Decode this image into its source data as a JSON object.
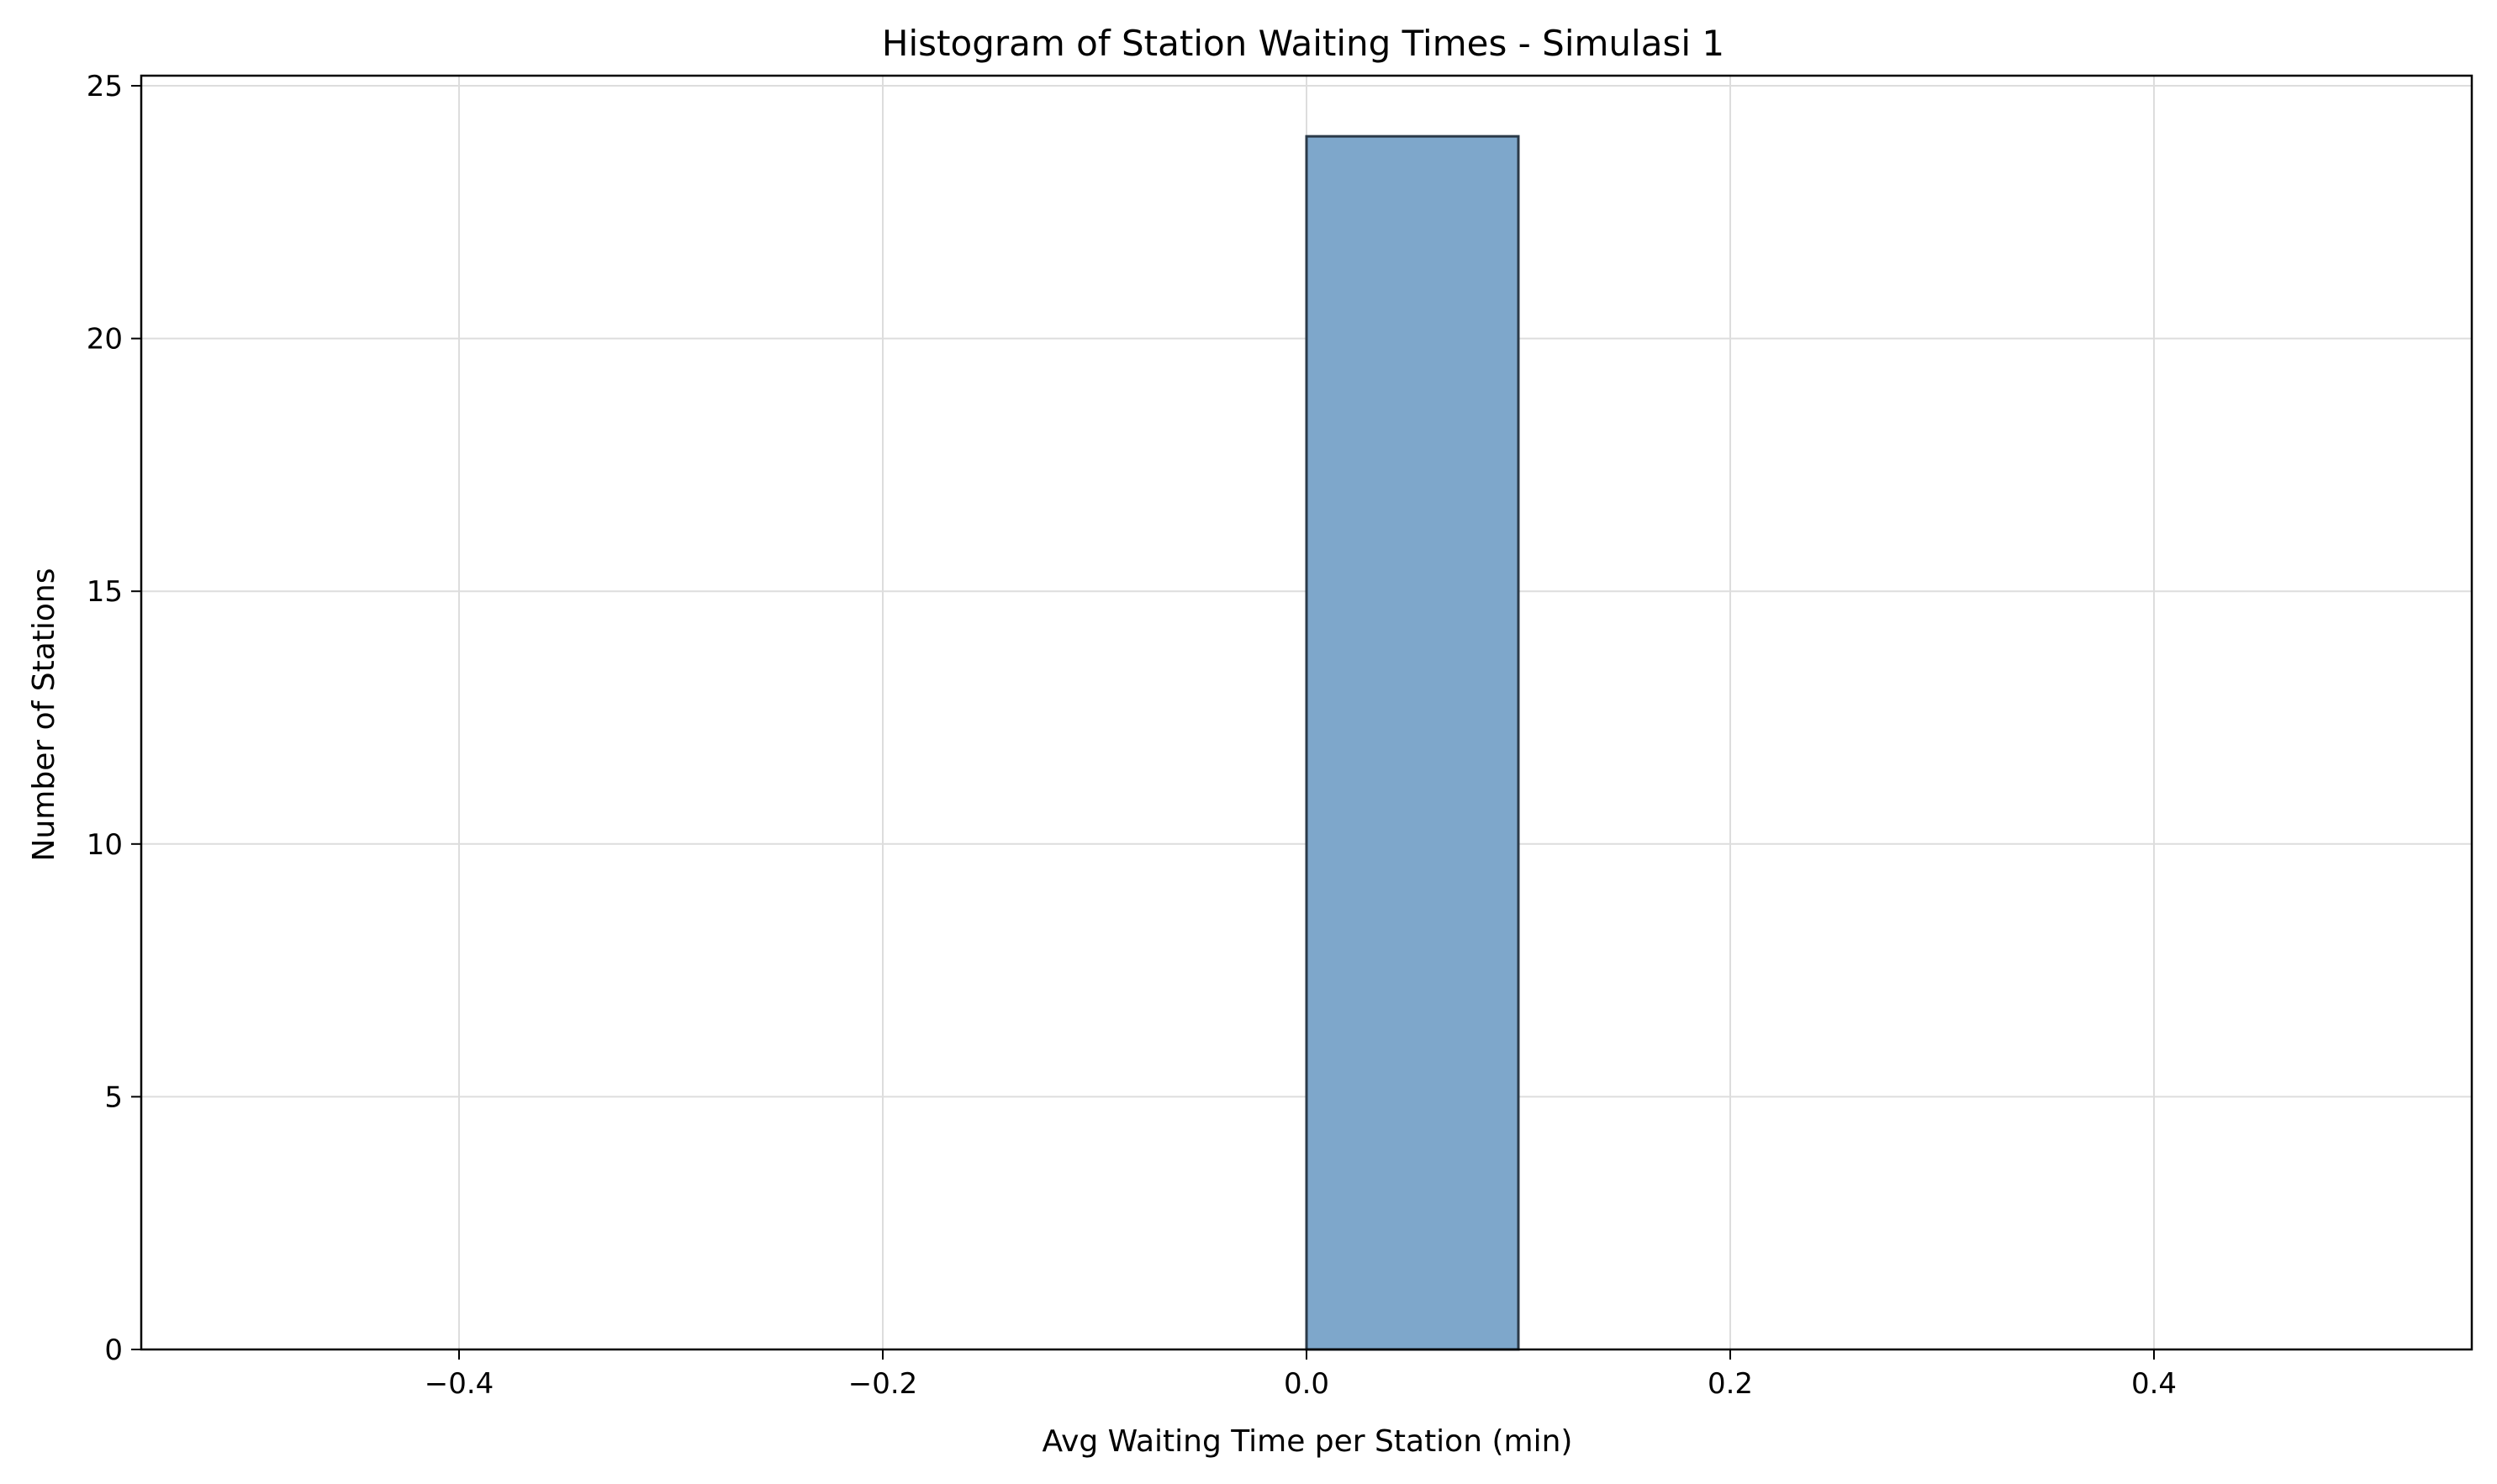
{
  "chart_data": {
    "type": "bar",
    "title": "Histogram of Station Waiting Times - Simulasi 1",
    "xlabel": "Avg Waiting Time per Station (min)",
    "ylabel": "Number of Stations",
    "bins": [
      {
        "x0": -0.5,
        "x1": -0.4,
        "count": 0
      },
      {
        "x0": -0.4,
        "x1": -0.3,
        "count": 0
      },
      {
        "x0": -0.3,
        "x1": -0.2,
        "count": 0
      },
      {
        "x0": -0.2,
        "x1": -0.1,
        "count": 0
      },
      {
        "x0": -0.1,
        "x1": 0.0,
        "count": 0
      },
      {
        "x0": 0.0,
        "x1": 0.1,
        "count": 24
      },
      {
        "x0": 0.1,
        "x1": 0.2,
        "count": 0
      },
      {
        "x0": 0.2,
        "x1": 0.3,
        "count": 0
      },
      {
        "x0": 0.3,
        "x1": 0.4,
        "count": 0
      },
      {
        "x0": 0.4,
        "x1": 0.5,
        "count": 0
      }
    ],
    "xlim": [
      -0.55,
      0.55
    ],
    "ylim": [
      0,
      25.2
    ],
    "xticks": [
      {
        "value": -0.4,
        "label": "−0.4"
      },
      {
        "value": -0.2,
        "label": "−0.2"
      },
      {
        "value": 0.0,
        "label": "0.0"
      },
      {
        "value": 0.2,
        "label": "0.2"
      },
      {
        "value": 0.4,
        "label": "0.4"
      }
    ],
    "yticks": [
      {
        "value": 0,
        "label": "0"
      },
      {
        "value": 5,
        "label": "5"
      },
      {
        "value": 10,
        "label": "10"
      },
      {
        "value": 15,
        "label": "15"
      },
      {
        "value": 20,
        "label": "20"
      },
      {
        "value": 25,
        "label": "25"
      }
    ],
    "grid": true,
    "colors": {
      "bar": "#7ea7cb",
      "edge": "#2b3a48",
      "grid": "#dddddd"
    }
  }
}
